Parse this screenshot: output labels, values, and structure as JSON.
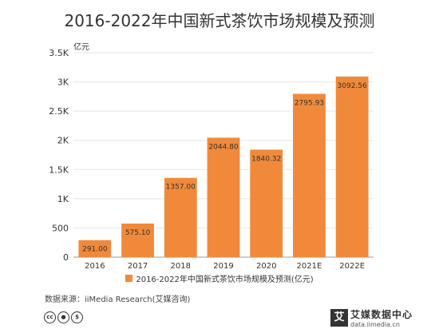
{
  "title": "2016-2022年中国新式茶饮市场规模及预测",
  "unit_label": "亿元",
  "legend_label": "2016-2022年中国新式茶饮市场规模及预测(亿元)",
  "source": "数据来源：iiMedia Research(艾媒咨询)",
  "cc_icons": [
    "cc-icon",
    "person-icon",
    "no-commercial-icon"
  ],
  "logo": {
    "mark": "艾",
    "name": "艾媒数据中心",
    "url": "data.iimedia.cn"
  },
  "colors": {
    "bar": "#f08a3a",
    "grid": "#e5e5e5",
    "axis": "#999999",
    "text": "#333333"
  },
  "chart_data": {
    "type": "bar",
    "title": "2016-2022年中国新式茶饮市场规模及预测",
    "ylabel": "亿元",
    "categories": [
      "2016",
      "2017",
      "2018",
      "2019",
      "2020",
      "2021E",
      "2022E"
    ],
    "series": [
      {
        "name": "2016-2022年中国新式茶饮市场规模及预测(亿元)",
        "values": [
          291.0,
          575.1,
          1357.0,
          2044.8,
          1840.32,
          2795.93,
          3092.56
        ],
        "labels": [
          "291.00",
          "575.10",
          "1357.00",
          "2044.80",
          "1840.32",
          "2795.93",
          "3092.56"
        ]
      }
    ],
    "ylim": [
      0,
      3500
    ],
    "yticks": [
      0,
      500,
      1000,
      1500,
      2000,
      2500,
      3000,
      3500
    ],
    "ytick_labels": [
      "0",
      "500",
      "1K",
      "1.5K",
      "2K",
      "2.5K",
      "3K",
      "3.5K"
    ],
    "grid": true,
    "legend_position": "bottom"
  }
}
